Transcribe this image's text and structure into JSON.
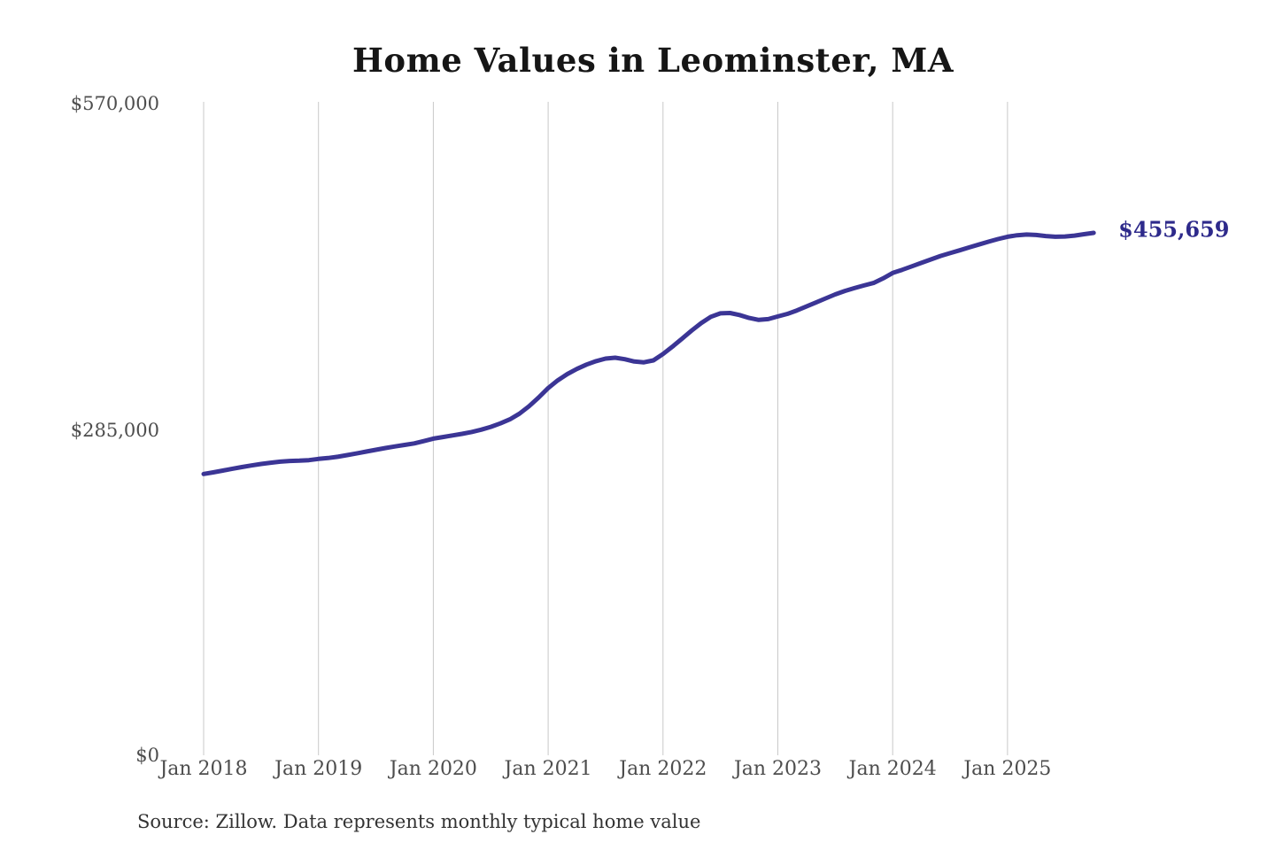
{
  "chart_data": {
    "type": "line",
    "title": "Home Values in Leominster, MA",
    "xlabel": "",
    "ylabel": "",
    "ylim": [
      0,
      570000
    ],
    "grid": "vertical-only",
    "legend": "none",
    "start_month": "Jan 2018",
    "end_month": "Oct 2025",
    "x_tick_labels": [
      "Jan 2018",
      "Jan 2019",
      "Jan 2020",
      "Jan 2021",
      "Jan 2022",
      "Jan 2023",
      "Jan 2024",
      "Jan 2025"
    ],
    "y_tick_labels": [
      "$0",
      "$285,000",
      "$570,000"
    ],
    "y_tick_values": [
      0,
      285000,
      570000
    ],
    "series": [
      {
        "name": "Monthly typical home value",
        "values": [
          245400,
          246800,
          248300,
          249900,
          251400,
          252800,
          254100,
          255200,
          256100,
          256700,
          257000,
          257400,
          258500,
          259300,
          260400,
          261800,
          263300,
          264900,
          266500,
          268000,
          269400,
          270700,
          272000,
          274000,
          276200,
          277600,
          279000,
          280400,
          282000,
          284000,
          286500,
          289500,
          293000,
          298000,
          304500,
          312000,
          320300,
          327000,
          332500,
          337000,
          340800,
          343800,
          346000,
          346800,
          345500,
          343500,
          342800,
          344500,
          350000,
          356500,
          363500,
          370500,
          377000,
          382500,
          385500,
          385800,
          384000,
          381500,
          379800,
          380500,
          382800,
          385000,
          388000,
          391500,
          395000,
          398500,
          402000,
          405000,
          407500,
          409800,
          412000,
          416000,
          420700,
          423500,
          426500,
          429500,
          432500,
          435500,
          438000,
          440500,
          443000,
          445500,
          448000,
          450300,
          452300,
          453600,
          454200,
          453800,
          452900,
          452300,
          452500,
          453300,
          454500,
          455659
        ]
      }
    ],
    "end_label": "$455,659",
    "end_value": 455659,
    "source_note": "Source: Zillow. Data represents monthly typical home value",
    "colors": {
      "line": "#3b3595",
      "end_label": "#2e2a8b",
      "grid": "#c9c9c9",
      "title": "#161616",
      "ticks": "#4d4d4d",
      "source": "#333333",
      "background": "#ffffff"
    }
  }
}
